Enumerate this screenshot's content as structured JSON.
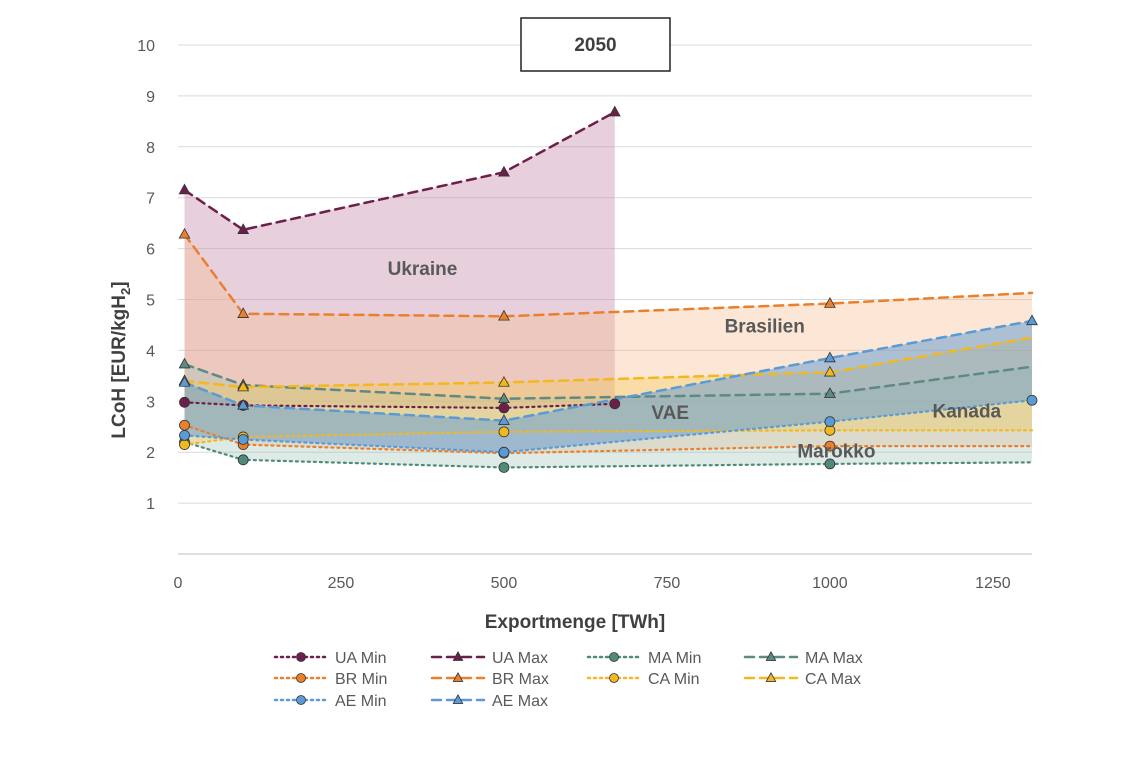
{
  "chart_data": {
    "type": "line",
    "title": "2050",
    "xlabel": "Exportmenge [TWh]",
    "ylabel": "LCoH [EUR/kgH",
    "ylabel_sub": "2",
    "ylabel_end": "]",
    "xlim": [
      0,
      1310
    ],
    "ylim": [
      0,
      10
    ],
    "x_ticks": [
      0,
      250,
      500,
      750,
      1000,
      1250
    ],
    "y_ticks": [
      1,
      2,
      3,
      4,
      5,
      6,
      7,
      8,
      9,
      10
    ],
    "grid": true,
    "legend_position": "bottom",
    "series": [
      {
        "name": "UA Min",
        "color": "#6d1f4b",
        "style": "dotted",
        "marker": "circle",
        "show_markers": true,
        "points": [
          [
            10,
            2.98
          ],
          [
            100,
            2.92
          ],
          [
            500,
            2.87
          ],
          [
            670,
            2.95
          ]
        ]
      },
      {
        "name": "UA Max",
        "color": "#6d1f4b",
        "style": "dashed",
        "marker": "triangle",
        "show_markers": true,
        "points": [
          [
            10,
            7.15
          ],
          [
            100,
            6.37
          ],
          [
            500,
            7.5
          ],
          [
            670,
            8.68
          ]
        ]
      },
      {
        "name": "MA Min",
        "color": "#4f8a7b",
        "style": "dotted",
        "marker": "circle",
        "show_markers": true,
        "points": [
          [
            10,
            2.2
          ],
          [
            100,
            1.85
          ],
          [
            500,
            1.7
          ],
          [
            1000,
            1.77
          ],
          [
            1310,
            1.8
          ]
        ]
      },
      {
        "name": "MA Max",
        "color": "#5e8a83",
        "style": "dashed",
        "marker": "triangle",
        "show_markers": true,
        "points": [
          [
            10,
            3.73
          ],
          [
            100,
            3.32
          ],
          [
            500,
            3.05
          ],
          [
            1000,
            3.15
          ],
          [
            1310,
            3.68
          ]
        ]
      },
      {
        "name": "BR Min",
        "color": "#e8802e",
        "style": "dotted",
        "marker": "circle",
        "show_markers": true,
        "points": [
          [
            10,
            2.53
          ],
          [
            100,
            2.15
          ],
          [
            500,
            1.98
          ],
          [
            1000,
            2.12
          ],
          [
            1310,
            2.12
          ]
        ]
      },
      {
        "name": "BR Max",
        "color": "#e8802e",
        "style": "dashed",
        "marker": "triangle",
        "show_markers": true,
        "points": [
          [
            10,
            6.28
          ],
          [
            100,
            4.72
          ],
          [
            500,
            4.67
          ],
          [
            1000,
            4.92
          ],
          [
            1310,
            5.13
          ]
        ]
      },
      {
        "name": "CA Min",
        "color": "#f2b81f",
        "style": "dotted",
        "marker": "circle",
        "show_markers": true,
        "points": [
          [
            10,
            2.15
          ],
          [
            100,
            2.3
          ],
          [
            500,
            2.4
          ],
          [
            1000,
            2.43
          ],
          [
            1310,
            2.43
          ]
        ]
      },
      {
        "name": "CA Max",
        "color": "#f2b81f",
        "style": "dashed",
        "marker": "triangle",
        "show_markers": true,
        "points": [
          [
            10,
            3.4
          ],
          [
            100,
            3.28
          ],
          [
            500,
            3.37
          ],
          [
            1000,
            3.57
          ],
          [
            1310,
            4.25
          ]
        ]
      },
      {
        "name": "AE Min",
        "color": "#5b9bd5",
        "style": "dotted",
        "marker": "circle",
        "show_markers": true,
        "points": [
          [
            10,
            2.33
          ],
          [
            100,
            2.25
          ],
          [
            500,
            2.0
          ],
          [
            1000,
            2.6
          ],
          [
            1310,
            3.02
          ]
        ]
      },
      {
        "name": "AE Max",
        "color": "#5b9bd5",
        "style": "dashed",
        "marker": "triangle",
        "show_markers": true,
        "points": [
          [
            10,
            3.37
          ],
          [
            100,
            2.92
          ],
          [
            500,
            2.62
          ],
          [
            1000,
            3.85
          ],
          [
            1310,
            4.58
          ]
        ]
      }
    ],
    "bands": [
      {
        "label": "Ukraine",
        "min": "UA Min",
        "max": "UA Max",
        "color": "#c48aa6",
        "opacity": 0.4
      },
      {
        "label": "Brasilien",
        "min": "BR Min",
        "max": "BR Max",
        "color": "#f6b98a",
        "opacity": 0.35
      },
      {
        "label": "Marokko",
        "min": "MA Min",
        "max": "MA Max",
        "color": "#9ec3b6",
        "opacity": 0.35
      },
      {
        "label": "Kanada",
        "min": "CA Min",
        "max": "CA Max",
        "color": "#f5c84f",
        "opacity": 0.35
      },
      {
        "label": "VAE",
        "min": "AE Min",
        "max": "AE Max",
        "color": "#6b9ecf",
        "opacity": 0.55
      }
    ],
    "region_labels": [
      {
        "text": "Ukraine",
        "x": 375,
        "y": 5.48
      },
      {
        "text": "Brasilien",
        "x": 900,
        "y": 4.35
      },
      {
        "text": "VAE",
        "x": 755,
        "y": 2.65
      },
      {
        "text": "Kanada",
        "x": 1210,
        "y": 2.68
      },
      {
        "text": "Marokko",
        "x": 1010,
        "y": 1.9
      }
    ],
    "legend": [
      [
        "UA Min",
        "UA Max",
        "MA Min",
        "MA Max"
      ],
      [
        "BR Min",
        "BR Max",
        "CA Min",
        "CA Max"
      ],
      [
        "AE Min",
        "AE Max"
      ]
    ]
  }
}
